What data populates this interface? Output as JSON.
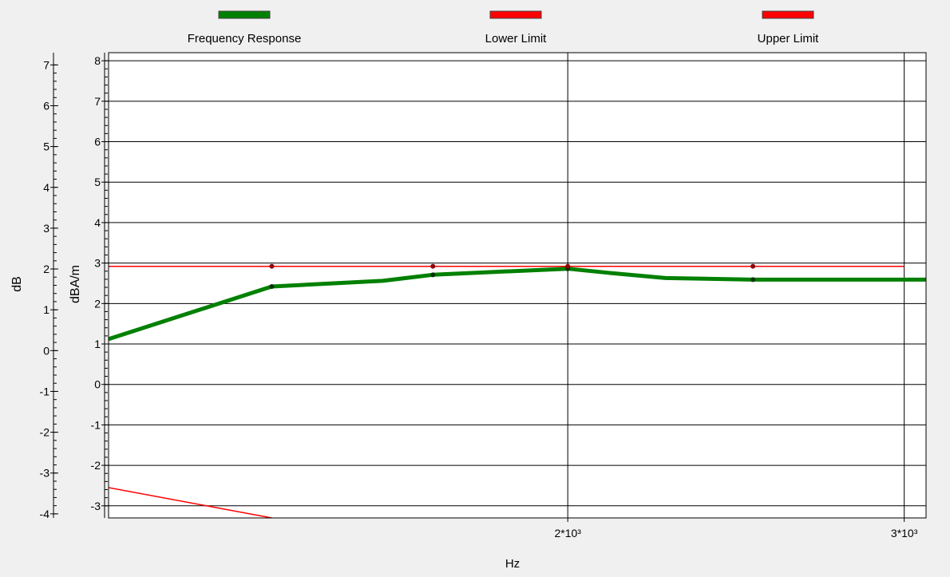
{
  "chart_data": {
    "type": "line",
    "xlabel": "Hz",
    "x_scale": "log",
    "xlim": [
      1150,
      3080
    ],
    "x_ticks": [
      {
        "value": 2000,
        "label": "2*10³"
      },
      {
        "value": 3000,
        "label": "3*10³"
      }
    ],
    "axes": [
      {
        "id": "left-outer",
        "label": "dB",
        "ylim": [
          -4.1,
          7.3
        ],
        "ticks": [
          -4,
          -3,
          -2,
          -1,
          0,
          1,
          2,
          3,
          4,
          5,
          6,
          7
        ]
      },
      {
        "id": "left-inner",
        "label": "dBA/m",
        "ylim": [
          -3.3,
          8.2
        ],
        "ticks": [
          -3,
          -2,
          -1,
          0,
          1,
          2,
          3,
          4,
          5,
          6,
          7,
          8
        ]
      }
    ],
    "legend_position": "top",
    "grid": true,
    "series": [
      {
        "name": "Frequency Response",
        "color": "#008000",
        "axis": "left-inner",
        "points": [
          [
            1150,
            1.12
          ],
          [
            1400,
            2.42
          ],
          [
            1600,
            2.56
          ],
          [
            1700,
            2.71
          ],
          [
            1850,
            2.79
          ],
          [
            2000,
            2.86
          ],
          [
            2100,
            2.76
          ],
          [
            2250,
            2.63
          ],
          [
            2500,
            2.59
          ],
          [
            3080,
            2.59
          ]
        ],
        "markers": [
          [
            1400,
            2.42
          ],
          [
            1700,
            2.71
          ],
          [
            2000,
            2.86
          ],
          [
            2500,
            2.59
          ]
        ]
      },
      {
        "name": "Lower Limit",
        "color": "#ff0000",
        "axis": "left-inner",
        "points": [
          [
            1150,
            -2.55
          ],
          [
            1400,
            -3.3
          ]
        ]
      },
      {
        "name": "Upper Limit",
        "color": "#ff0000",
        "axis": "left-inner",
        "points": [
          [
            1150,
            2.92
          ],
          [
            3000,
            2.92
          ]
        ],
        "markers": [
          [
            1400,
            2.92
          ],
          [
            1700,
            2.92
          ],
          [
            2000,
            2.92
          ],
          [
            2500,
            2.92
          ]
        ]
      }
    ]
  }
}
